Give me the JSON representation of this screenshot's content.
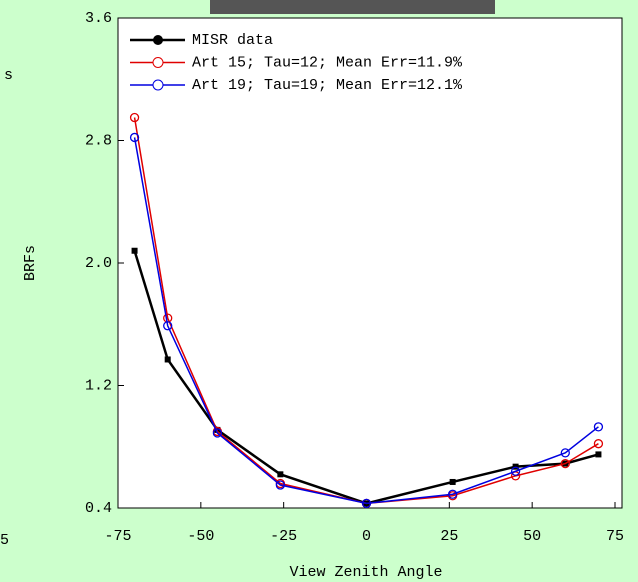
{
  "chart_data": {
    "type": "line",
    "x_label": "View Zenith Angle",
    "y_label": "BRFs",
    "x": [
      -70,
      -60,
      -45,
      -26,
      0,
      26,
      45,
      60,
      70
    ],
    "series": [
      {
        "name": "MISR data",
        "color": "#000000",
        "marker": "filled",
        "values": [
          2.08,
          1.37,
          0.91,
          0.62,
          0.43,
          0.57,
          0.67,
          0.69,
          0.75
        ]
      },
      {
        "name": "Art 15; Tau=12; Mean Err=11.9%",
        "color": "#e00000",
        "marker": "open",
        "values": [
          2.95,
          1.64,
          0.9,
          0.56,
          0.43,
          0.48,
          0.61,
          0.69,
          0.82
        ]
      },
      {
        "name": "Art 19; Tau=19; Mean Err=12.1%",
        "color": "#0000e0",
        "marker": "open",
        "values": [
          2.82,
          1.59,
          0.89,
          0.55,
          0.43,
          0.49,
          0.64,
          0.76,
          0.93
        ]
      }
    ],
    "xlim": [
      -75,
      75
    ],
    "xticks": [
      -75,
      -50,
      -25,
      0,
      25,
      50,
      75
    ],
    "ylim": [
      0.4,
      3.6
    ],
    "yticks": [
      0.4,
      1.2,
      {
        "value": 2,
        "label": "2.0"
      },
      2.8,
      3.6
    ],
    "legend": "top-left"
  },
  "fragments": [
    "s",
    "5"
  ]
}
